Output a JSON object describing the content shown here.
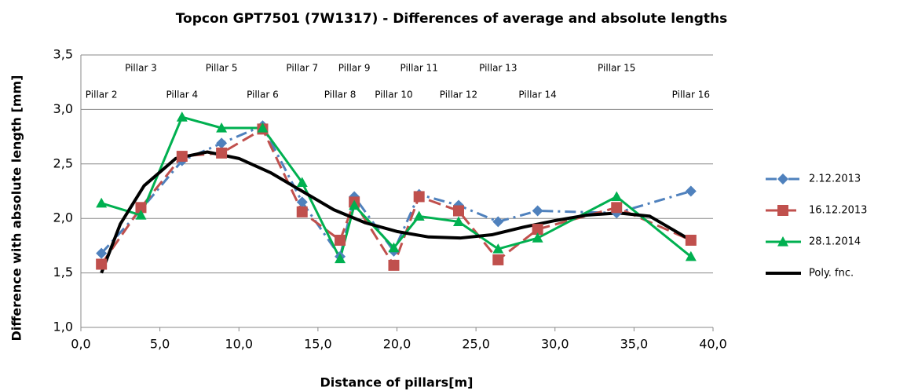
{
  "chart_data": {
    "type": "line",
    "title": "Topcon GPT7501 (7W1317) - Differences of average and absolute lengths",
    "x_label": "Distance of pillars[m]",
    "y_label": "Difference with absolute length [mm]",
    "xlim": [
      0,
      40
    ],
    "ylim": [
      1.0,
      3.5
    ],
    "xticks": [
      {
        "value": 0,
        "label": "0,0"
      },
      {
        "value": 5,
        "label": "5,0"
      },
      {
        "value": 10,
        "label": "10,0"
      },
      {
        "value": 15,
        "label": "15,0"
      },
      {
        "value": 20,
        "label": "20,0"
      },
      {
        "value": 25,
        "label": "25,0"
      },
      {
        "value": 30,
        "label": "30,0"
      },
      {
        "value": 35,
        "label": "35,0"
      },
      {
        "value": 40,
        "label": "40,0"
      }
    ],
    "yticks": [
      {
        "value": 1.0,
        "label": "1,0"
      },
      {
        "value": 1.5,
        "label": "1,5"
      },
      {
        "value": 2.0,
        "label": "2,0"
      },
      {
        "value": 2.5,
        "label": "2,5"
      },
      {
        "value": 3.0,
        "label": "3,0"
      },
      {
        "value": 3.5,
        "label": "3,5"
      }
    ],
    "grid": true,
    "legend": "right",
    "x": [
      1.3,
      3.8,
      6.4,
      8.9,
      11.5,
      14.0,
      16.4,
      17.3,
      19.8,
      21.4,
      23.9,
      26.4,
      28.9,
      33.9,
      38.6
    ],
    "annotations": [
      {
        "text": "Pillar 2",
        "x": 1.3
      },
      {
        "text": "Pillar 3",
        "x": 3.8
      },
      {
        "text": "Pillar 4",
        "x": 6.4
      },
      {
        "text": "Pillar 5",
        "x": 8.9
      },
      {
        "text": "Pillar 6",
        "x": 11.5
      },
      {
        "text": "Pillar 7",
        "x": 14.0
      },
      {
        "text": "Pillar 8",
        "x": 16.4
      },
      {
        "text": "Pillar 9",
        "x": 17.3
      },
      {
        "text": "Pillar 10",
        "x": 19.8
      },
      {
        "text": "Pillar 11",
        "x": 21.4
      },
      {
        "text": "Pillar 12",
        "x": 23.9
      },
      {
        "text": "Pillar 13",
        "x": 26.4
      },
      {
        "text": "Pillar 14",
        "x": 28.9
      },
      {
        "text": "Pillar 15",
        "x": 33.9
      },
      {
        "text": "Pillar 16",
        "x": 38.6
      }
    ],
    "series": [
      {
        "name": "2.12.2013",
        "color": "#4f81bd",
        "marker": "diamond",
        "line_style": "dashdot",
        "values": [
          1.68,
          2.08,
          2.53,
          2.69,
          2.85,
          2.15,
          1.65,
          2.2,
          1.7,
          2.22,
          2.12,
          1.97,
          2.07,
          2.05,
          2.25
        ]
      },
      {
        "name": "16.12.2013",
        "color": "#c0504d",
        "marker": "square",
        "line_style": "dashed",
        "values": [
          1.58,
          2.1,
          2.57,
          2.6,
          2.82,
          2.06,
          1.8,
          2.15,
          1.57,
          2.2,
          2.07,
          1.62,
          1.9,
          2.1,
          1.8
        ]
      },
      {
        "name": "28.1.2014",
        "color": "#00b050",
        "marker": "triangle",
        "line_style": "solid",
        "values": [
          2.14,
          2.03,
          2.93,
          2.83,
          2.83,
          2.33,
          1.63,
          2.12,
          1.73,
          2.02,
          1.97,
          1.72,
          1.82,
          2.2,
          1.65
        ]
      },
      {
        "name": "Poly. fnc.",
        "color": "#000000",
        "marker": "none",
        "line_style": "thick",
        "x": [
          1.3,
          2.5,
          4,
          6,
          8,
          10,
          12,
          14,
          16,
          18,
          20,
          22,
          24,
          26,
          28,
          30,
          32,
          34,
          36,
          38.6
        ],
        "values": [
          1.5,
          1.95,
          2.3,
          2.55,
          2.61,
          2.55,
          2.42,
          2.25,
          2.08,
          1.96,
          1.88,
          1.83,
          1.82,
          1.85,
          1.92,
          1.98,
          2.03,
          2.05,
          2.02,
          1.8
        ]
      }
    ]
  }
}
